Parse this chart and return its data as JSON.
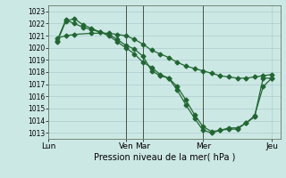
{
  "xlabel": "Pression niveau de la mer( hPa )",
  "ylim": [
    1012.5,
    1023.5
  ],
  "yticks": [
    1013,
    1014,
    1015,
    1016,
    1017,
    1018,
    1019,
    1020,
    1021,
    1022,
    1023
  ],
  "bg_color": "#cce8e4",
  "grid_color": "#aacccc",
  "line_color": "#226633",
  "vline_color": "#445544",
  "xtick_labels_named": [
    "Lun",
    "Ven",
    "Mar",
    "Mer",
    "Jeu"
  ],
  "xtick_named_positions": [
    0,
    9,
    11,
    18,
    26
  ],
  "xlim": [
    0,
    27
  ],
  "vline_positions": [
    9,
    11,
    18
  ],
  "series1_x": [
    1,
    2,
    3,
    4,
    5,
    6,
    7,
    8,
    9,
    10,
    11,
    12,
    13,
    14,
    15,
    16,
    17,
    18,
    19,
    20,
    21,
    22,
    23,
    24,
    25,
    26
  ],
  "series1_y": [
    1020.6,
    1022.3,
    1022.0,
    1021.7,
    1021.5,
    1021.3,
    1021.1,
    1020.7,
    1020.2,
    1019.9,
    1019.3,
    1018.1,
    1017.7,
    1017.5,
    1016.5,
    1015.3,
    1014.2,
    1013.2,
    1013.0,
    1013.2,
    1013.3,
    1013.3,
    1013.8,
    1014.3,
    1017.5,
    1017.5
  ],
  "series2_x": [
    1,
    2,
    3,
    4,
    5,
    6,
    7,
    8,
    9,
    10,
    11,
    12,
    13,
    14,
    15,
    16,
    17,
    18,
    19,
    20,
    21,
    22,
    23,
    24,
    25,
    26
  ],
  "series2_y": [
    1020.5,
    1022.2,
    1022.4,
    1021.9,
    1021.6,
    1021.3,
    1021.0,
    1020.5,
    1020.0,
    1019.5,
    1018.8,
    1018.4,
    1017.8,
    1017.5,
    1016.8,
    1015.7,
    1014.5,
    1013.5,
    1013.1,
    1013.2,
    1013.4,
    1013.4,
    1013.8,
    1014.4,
    1016.8,
    1017.5
  ],
  "series3_x": [
    1,
    2,
    3,
    5,
    7,
    8,
    9,
    10,
    11,
    12,
    13,
    14,
    15,
    16,
    17,
    18,
    19,
    20,
    21,
    22,
    23,
    24,
    25,
    26
  ],
  "series3_y": [
    1020.8,
    1021.0,
    1021.1,
    1021.2,
    1021.2,
    1021.1,
    1021.0,
    1020.7,
    1020.3,
    1019.8,
    1019.5,
    1019.2,
    1018.8,
    1018.5,
    1018.3,
    1018.1,
    1017.9,
    1017.7,
    1017.6,
    1017.5,
    1017.5,
    1017.6,
    1017.7,
    1017.8
  ],
  "markersize": 2.5,
  "linewidth": 0.9
}
